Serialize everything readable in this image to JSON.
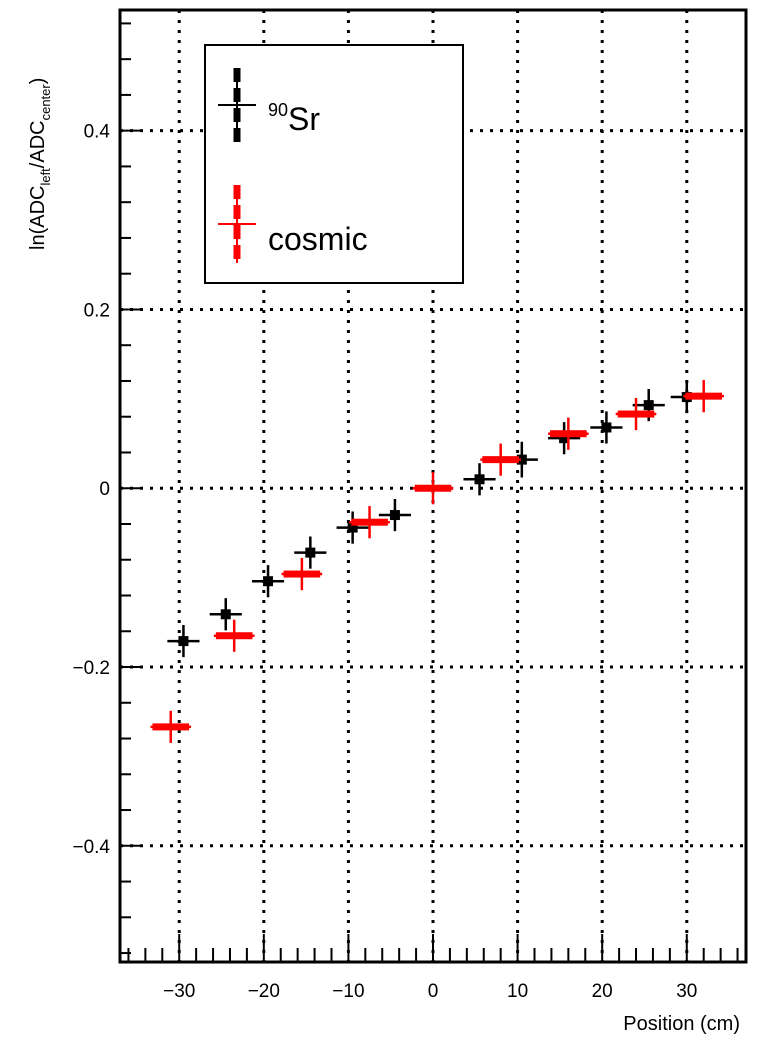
{
  "chart_data": {
    "type": "scatter",
    "xlabel": "Position (cm)",
    "ylabel": {
      "prefix": "ln(ADC",
      "sub1": "left",
      "mid": "/ADC",
      "sub2": "center",
      "suffix": ")"
    },
    "xlim": [
      -37,
      37
    ],
    "ylim": [
      -0.53,
      0.535
    ],
    "x_major_ticks": [
      -30,
      -20,
      -10,
      0,
      10,
      20,
      30
    ],
    "x_tick_labels": [
      "−30",
      "−20",
      "−10",
      "0",
      "10",
      "20",
      "30"
    ],
    "y_major_ticks": [
      -0.4,
      -0.2,
      0,
      0.2,
      0.4
    ],
    "y_tick_labels": [
      "−0.4",
      "−0.2",
      "0",
      "0.2",
      "0.4"
    ],
    "grid": true,
    "legend_position": "top-left",
    "series": [
      {
        "name_sup": "90",
        "name": "Sr",
        "color": "#000000",
        "points": [
          {
            "x": -29.5,
            "y": -0.171,
            "xerr": 1.9,
            "yerr": 0.018
          },
          {
            "x": -24.5,
            "y": -0.141,
            "xerr": 1.9,
            "yerr": 0.018
          },
          {
            "x": -19.5,
            "y": -0.104,
            "xerr": 1.9,
            "yerr": 0.018
          },
          {
            "x": -14.5,
            "y": -0.072,
            "xerr": 1.9,
            "yerr": 0.018
          },
          {
            "x": -9.5,
            "y": -0.044,
            "xerr": 1.9,
            "yerr": 0.018
          },
          {
            "x": -4.5,
            "y": -0.03,
            "xerr": 1.9,
            "yerr": 0.018
          },
          {
            "x": 5.5,
            "y": 0.01,
            "xerr": 1.9,
            "yerr": 0.018
          },
          {
            "x": 10.5,
            "y": 0.032,
            "xerr": 1.9,
            "yerr": 0.02
          },
          {
            "x": 15.5,
            "y": 0.056,
            "xerr": 1.9,
            "yerr": 0.018
          },
          {
            "x": 20.5,
            "y": 0.068,
            "xerr": 1.9,
            "yerr": 0.018
          },
          {
            "x": 25.5,
            "y": 0.093,
            "xerr": 1.9,
            "yerr": 0.018
          },
          {
            "x": 30.0,
            "y": 0.102,
            "xerr": 1.9,
            "yerr": 0.018
          }
        ]
      },
      {
        "name": "cosmic",
        "color": "#ff0000",
        "points": [
          {
            "x": -31.0,
            "y": -0.267,
            "xerr": 2.4,
            "yerr": 0.018
          },
          {
            "x": -23.5,
            "y": -0.165,
            "xerr": 2.4,
            "yerr": 0.018
          },
          {
            "x": -15.5,
            "y": -0.096,
            "xerr": 2.4,
            "yerr": 0.018
          },
          {
            "x": -7.5,
            "y": -0.038,
            "xerr": 2.4,
            "yerr": 0.018
          },
          {
            "x": 0.0,
            "y": 0.0,
            "xerr": 2.4,
            "yerr": 0.018
          },
          {
            "x": 8.0,
            "y": 0.032,
            "xerr": 2.4,
            "yerr": 0.018
          },
          {
            "x": 16.0,
            "y": 0.061,
            "xerr": 2.4,
            "yerr": 0.018
          },
          {
            "x": 24.0,
            "y": 0.083,
            "xerr": 2.4,
            "yerr": 0.018
          },
          {
            "x": 32.0,
            "y": 0.103,
            "xerr": 2.4,
            "yerr": 0.018
          }
        ]
      }
    ]
  }
}
